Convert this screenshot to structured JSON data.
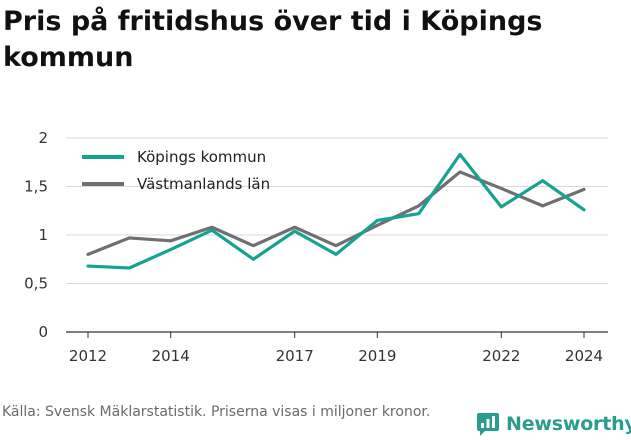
{
  "header": {
    "title": "Pris på fritidshus över tid i Köpings kommun"
  },
  "chart_data": {
    "type": "line",
    "title": "Pris på fritidshus över tid i Köpings kommun",
    "xlabel": "",
    "ylabel": "",
    "x": [
      2012,
      2013,
      2014,
      2015,
      2016,
      2017,
      2018,
      2019,
      2020,
      2021,
      2022,
      2023,
      2024
    ],
    "x_ticks": [
      2012,
      2014,
      2017,
      2019,
      2022,
      2024
    ],
    "x_tick_labels": [
      "2012",
      "2014",
      "2017",
      "2019",
      "2022",
      "2024"
    ],
    "xlim": [
      2012,
      2024
    ],
    "ylim": [
      0,
      2
    ],
    "y_ticks": [
      0,
      0.5,
      1,
      1.5,
      2
    ],
    "y_tick_labels": [
      "0",
      "0,5",
      "1",
      "1,5",
      "2"
    ],
    "grid": "horizontal",
    "legend_position": "top-left",
    "series": [
      {
        "name": "Köpings kommun",
        "color": "#14a393",
        "values": [
          0.68,
          0.66,
          0.85,
          1.05,
          0.75,
          1.04,
          0.8,
          1.15,
          1.22,
          1.83,
          1.29,
          1.56,
          1.26
        ]
      },
      {
        "name": "Västmanlands län",
        "color": "#6e6e73",
        "values": [
          0.8,
          0.97,
          0.94,
          1.08,
          0.89,
          1.08,
          0.89,
          1.1,
          1.3,
          1.65,
          1.48,
          1.3,
          1.47
        ]
      }
    ]
  },
  "footer": {
    "source": "Källa: Svensk Mäklarstatistik. Priserna visas i miljoner kronor."
  },
  "brand": {
    "name": "Newsworthy",
    "color": "#2a9d8f",
    "icon": "newsworthy-logo-icon"
  }
}
